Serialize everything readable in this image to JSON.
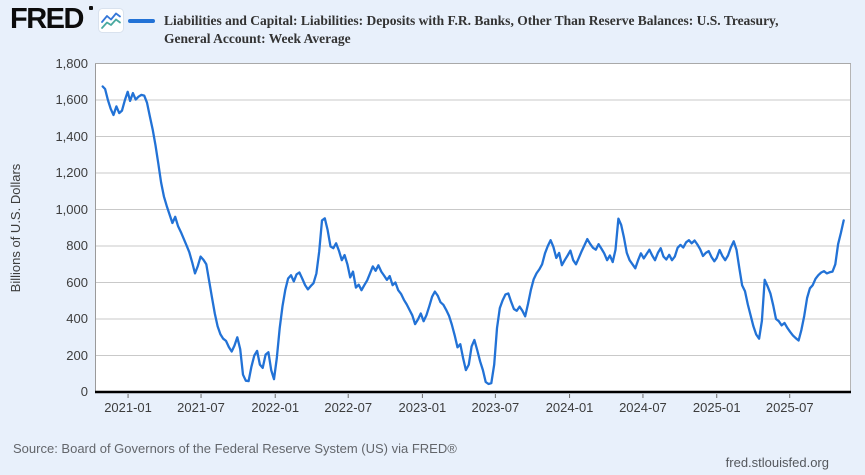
{
  "colors": {
    "background": "#e8f0fb",
    "plot_background": "#ffffff",
    "grid": "#c9c9c9",
    "axis": "#000000",
    "line": "#2272d6",
    "logo_line_top": "#3577d8",
    "logo_line_bottom": "#4aa9a0"
  },
  "header": {
    "logo_text": "FRED",
    "series_title_line1": "Liabilities and Capital: Liabilities: Deposits with F.R. Banks, Other Than Reserve Balances: U.S. Treasury,",
    "series_title_line2": "General Account: Week Average"
  },
  "footer": {
    "source": "Source: Board of Governors of the Federal Reserve System (US) via FRED®",
    "site": "fred.stlouisfed.org"
  },
  "chart_data": {
    "type": "line",
    "title": "Liabilities and Capital: Liabilities: Deposits with F.R. Banks, Other Than Reserve Balances: U.S. Treasury, General Account: Week Average",
    "xlabel": "",
    "ylabel": "Billions of U.S. Dollars",
    "ylim": [
      0,
      1800
    ],
    "y_ticks": [
      0,
      200,
      400,
      600,
      800,
      1000,
      1200,
      1400,
      1600,
      1800
    ],
    "x_ticks": [
      {
        "label": "2021-01",
        "date": "2021-01-01"
      },
      {
        "label": "2021-07",
        "date": "2021-07-01"
      },
      {
        "label": "2022-01",
        "date": "2022-01-01"
      },
      {
        "label": "2022-07",
        "date": "2022-07-01"
      },
      {
        "label": "2023-01",
        "date": "2023-01-01"
      },
      {
        "label": "2023-07",
        "date": "2023-07-01"
      },
      {
        "label": "2024-01",
        "date": "2024-01-01"
      },
      {
        "label": "2024-07",
        "date": "2024-07-01"
      },
      {
        "label": "2025-01",
        "date": "2025-01-01"
      },
      {
        "label": "2025-07",
        "date": "2025-07-01"
      }
    ],
    "xlim_dates": [
      "2020-10-10",
      "2025-11-30"
    ],
    "grid": "horizontal",
    "legend_position": "top",
    "series": [
      {
        "name": "Liabilities and Capital: Liabilities: Deposits with F.R. Banks, Other Than Reserve Balances: U.S. Treasury, General Account: Week Average",
        "units": "Billions of U.S. Dollars",
        "points": [
          [
            "2020-10-29",
            1674
          ],
          [
            "2020-11-04",
            1660
          ],
          [
            "2020-11-11",
            1600
          ],
          [
            "2020-11-18",
            1552
          ],
          [
            "2020-11-25",
            1518
          ],
          [
            "2020-12-02",
            1565
          ],
          [
            "2020-12-09",
            1528
          ],
          [
            "2020-12-16",
            1542
          ],
          [
            "2020-12-23",
            1598
          ],
          [
            "2020-12-30",
            1645
          ],
          [
            "2021-01-06",
            1595
          ],
          [
            "2021-01-13",
            1638
          ],
          [
            "2021-01-20",
            1602
          ],
          [
            "2021-01-27",
            1618
          ],
          [
            "2021-02-03",
            1628
          ],
          [
            "2021-02-10",
            1624
          ],
          [
            "2021-02-17",
            1585
          ],
          [
            "2021-02-24",
            1512
          ],
          [
            "2021-03-03",
            1438
          ],
          [
            "2021-03-10",
            1352
          ],
          [
            "2021-03-17",
            1252
          ],
          [
            "2021-03-24",
            1148
          ],
          [
            "2021-03-31",
            1072
          ],
          [
            "2021-04-07",
            1018
          ],
          [
            "2021-04-14",
            972
          ],
          [
            "2021-04-21",
            926
          ],
          [
            "2021-04-28",
            960
          ],
          [
            "2021-05-05",
            908
          ],
          [
            "2021-05-12",
            876
          ],
          [
            "2021-05-19",
            840
          ],
          [
            "2021-05-26",
            804
          ],
          [
            "2021-06-02",
            766
          ],
          [
            "2021-06-09",
            710
          ],
          [
            "2021-06-16",
            650
          ],
          [
            "2021-06-23",
            690
          ],
          [
            "2021-06-30",
            742
          ],
          [
            "2021-07-07",
            724
          ],
          [
            "2021-07-14",
            700
          ],
          [
            "2021-07-21",
            610
          ],
          [
            "2021-07-28",
            520
          ],
          [
            "2021-08-04",
            430
          ],
          [
            "2021-08-11",
            360
          ],
          [
            "2021-08-18",
            316
          ],
          [
            "2021-08-25",
            292
          ],
          [
            "2021-09-01",
            280
          ],
          [
            "2021-09-08",
            246
          ],
          [
            "2021-09-15",
            222
          ],
          [
            "2021-09-22",
            255
          ],
          [
            "2021-09-29",
            300
          ],
          [
            "2021-10-06",
            235
          ],
          [
            "2021-10-13",
            95
          ],
          [
            "2021-10-20",
            62
          ],
          [
            "2021-10-27",
            60
          ],
          [
            "2021-11-03",
            138
          ],
          [
            "2021-11-10",
            200
          ],
          [
            "2021-11-17",
            225
          ],
          [
            "2021-11-24",
            150
          ],
          [
            "2021-12-01",
            132
          ],
          [
            "2021-12-08",
            205
          ],
          [
            "2021-12-15",
            218
          ],
          [
            "2021-12-22",
            120
          ],
          [
            "2021-12-29",
            70
          ],
          [
            "2022-01-05",
            185
          ],
          [
            "2022-01-12",
            350
          ],
          [
            "2022-01-19",
            470
          ],
          [
            "2022-01-26",
            560
          ],
          [
            "2022-02-02",
            622
          ],
          [
            "2022-02-09",
            640
          ],
          [
            "2022-02-16",
            606
          ],
          [
            "2022-02-23",
            645
          ],
          [
            "2022-03-02",
            655
          ],
          [
            "2022-03-09",
            622
          ],
          [
            "2022-03-16",
            586
          ],
          [
            "2022-03-23",
            562
          ],
          [
            "2022-03-30",
            580
          ],
          [
            "2022-04-06",
            596
          ],
          [
            "2022-04-13",
            650
          ],
          [
            "2022-04-20",
            770
          ],
          [
            "2022-04-27",
            940
          ],
          [
            "2022-05-04",
            952
          ],
          [
            "2022-05-11",
            888
          ],
          [
            "2022-05-18",
            798
          ],
          [
            "2022-05-25",
            788
          ],
          [
            "2022-06-01",
            815
          ],
          [
            "2022-06-08",
            775
          ],
          [
            "2022-06-15",
            722
          ],
          [
            "2022-06-22",
            750
          ],
          [
            "2022-06-29",
            700
          ],
          [
            "2022-07-06",
            628
          ],
          [
            "2022-07-13",
            660
          ],
          [
            "2022-07-20",
            572
          ],
          [
            "2022-07-27",
            588
          ],
          [
            "2022-08-03",
            558
          ],
          [
            "2022-08-10",
            585
          ],
          [
            "2022-08-17",
            612
          ],
          [
            "2022-08-24",
            650
          ],
          [
            "2022-08-31",
            688
          ],
          [
            "2022-09-07",
            664
          ],
          [
            "2022-09-14",
            694
          ],
          [
            "2022-09-21",
            660
          ],
          [
            "2022-09-28",
            638
          ],
          [
            "2022-10-05",
            614
          ],
          [
            "2022-10-12",
            635
          ],
          [
            "2022-10-19",
            585
          ],
          [
            "2022-10-26",
            600
          ],
          [
            "2022-11-02",
            558
          ],
          [
            "2022-11-09",
            538
          ],
          [
            "2022-11-16",
            505
          ],
          [
            "2022-11-23",
            480
          ],
          [
            "2022-11-30",
            450
          ],
          [
            "2022-12-07",
            420
          ],
          [
            "2022-12-14",
            372
          ],
          [
            "2022-12-21",
            398
          ],
          [
            "2022-12-28",
            430
          ],
          [
            "2023-01-04",
            388
          ],
          [
            "2023-01-11",
            420
          ],
          [
            "2023-01-18",
            470
          ],
          [
            "2023-01-25",
            522
          ],
          [
            "2023-02-01",
            550
          ],
          [
            "2023-02-08",
            528
          ],
          [
            "2023-02-15",
            492
          ],
          [
            "2023-02-22",
            478
          ],
          [
            "2023-03-01",
            450
          ],
          [
            "2023-03-08",
            418
          ],
          [
            "2023-03-15",
            370
          ],
          [
            "2023-03-22",
            310
          ],
          [
            "2023-03-29",
            245
          ],
          [
            "2023-04-05",
            262
          ],
          [
            "2023-04-12",
            186
          ],
          [
            "2023-04-19",
            120
          ],
          [
            "2023-04-26",
            150
          ],
          [
            "2023-05-03",
            250
          ],
          [
            "2023-05-10",
            285
          ],
          [
            "2023-05-17",
            230
          ],
          [
            "2023-05-24",
            168
          ],
          [
            "2023-05-31",
            120
          ],
          [
            "2023-06-07",
            55
          ],
          [
            "2023-06-14",
            44
          ],
          [
            "2023-06-21",
            48
          ],
          [
            "2023-06-28",
            150
          ],
          [
            "2023-07-05",
            350
          ],
          [
            "2023-07-12",
            460
          ],
          [
            "2023-07-19",
            502
          ],
          [
            "2023-07-26",
            535
          ],
          [
            "2023-08-02",
            540
          ],
          [
            "2023-08-09",
            495
          ],
          [
            "2023-08-16",
            455
          ],
          [
            "2023-08-23",
            445
          ],
          [
            "2023-08-30",
            468
          ],
          [
            "2023-09-06",
            445
          ],
          [
            "2023-09-13",
            415
          ],
          [
            "2023-09-20",
            482
          ],
          [
            "2023-09-27",
            560
          ],
          [
            "2023-10-04",
            618
          ],
          [
            "2023-10-11",
            650
          ],
          [
            "2023-10-18",
            672
          ],
          [
            "2023-10-25",
            700
          ],
          [
            "2023-11-01",
            760
          ],
          [
            "2023-11-08",
            800
          ],
          [
            "2023-11-15",
            832
          ],
          [
            "2023-11-22",
            795
          ],
          [
            "2023-11-29",
            735
          ],
          [
            "2023-12-06",
            762
          ],
          [
            "2023-12-13",
            695
          ],
          [
            "2023-12-20",
            722
          ],
          [
            "2023-12-27",
            748
          ],
          [
            "2024-01-03",
            775
          ],
          [
            "2024-01-10",
            722
          ],
          [
            "2024-01-17",
            700
          ],
          [
            "2024-01-24",
            735
          ],
          [
            "2024-01-31",
            772
          ],
          [
            "2024-02-07",
            805
          ],
          [
            "2024-02-14",
            838
          ],
          [
            "2024-02-21",
            812
          ],
          [
            "2024-02-28",
            790
          ],
          [
            "2024-03-06",
            780
          ],
          [
            "2024-03-13",
            810
          ],
          [
            "2024-03-20",
            786
          ],
          [
            "2024-03-27",
            760
          ],
          [
            "2024-04-03",
            722
          ],
          [
            "2024-04-10",
            748
          ],
          [
            "2024-04-17",
            712
          ],
          [
            "2024-04-24",
            780
          ],
          [
            "2024-05-01",
            950
          ],
          [
            "2024-05-08",
            915
          ],
          [
            "2024-05-15",
            845
          ],
          [
            "2024-05-22",
            762
          ],
          [
            "2024-05-29",
            722
          ],
          [
            "2024-06-05",
            700
          ],
          [
            "2024-06-12",
            678
          ],
          [
            "2024-06-19",
            722
          ],
          [
            "2024-06-26",
            760
          ],
          [
            "2024-07-03",
            732
          ],
          [
            "2024-07-10",
            756
          ],
          [
            "2024-07-17",
            780
          ],
          [
            "2024-07-24",
            748
          ],
          [
            "2024-07-31",
            722
          ],
          [
            "2024-08-07",
            762
          ],
          [
            "2024-08-14",
            788
          ],
          [
            "2024-08-21",
            742
          ],
          [
            "2024-08-28",
            726
          ],
          [
            "2024-09-04",
            752
          ],
          [
            "2024-09-11",
            722
          ],
          [
            "2024-09-18",
            742
          ],
          [
            "2024-09-25",
            790
          ],
          [
            "2024-10-02",
            806
          ],
          [
            "2024-10-09",
            792
          ],
          [
            "2024-10-16",
            820
          ],
          [
            "2024-10-23",
            832
          ],
          [
            "2024-10-30",
            815
          ],
          [
            "2024-11-06",
            830
          ],
          [
            "2024-11-13",
            808
          ],
          [
            "2024-11-20",
            782
          ],
          [
            "2024-11-27",
            745
          ],
          [
            "2024-12-04",
            762
          ],
          [
            "2024-12-11",
            772
          ],
          [
            "2024-12-18",
            740
          ],
          [
            "2024-12-25",
            716
          ],
          [
            "2025-01-01",
            735
          ],
          [
            "2025-01-08",
            778
          ],
          [
            "2025-01-15",
            745
          ],
          [
            "2025-01-22",
            722
          ],
          [
            "2025-01-29",
            748
          ],
          [
            "2025-02-05",
            792
          ],
          [
            "2025-02-12",
            826
          ],
          [
            "2025-02-19",
            780
          ],
          [
            "2025-02-26",
            680
          ],
          [
            "2025-03-05",
            585
          ],
          [
            "2025-03-12",
            552
          ],
          [
            "2025-03-19",
            480
          ],
          [
            "2025-03-26",
            420
          ],
          [
            "2025-04-02",
            360
          ],
          [
            "2025-04-09",
            315
          ],
          [
            "2025-04-16",
            292
          ],
          [
            "2025-04-23",
            390
          ],
          [
            "2025-04-30",
            615
          ],
          [
            "2025-05-07",
            580
          ],
          [
            "2025-05-14",
            540
          ],
          [
            "2025-05-21",
            475
          ],
          [
            "2025-05-28",
            400
          ],
          [
            "2025-06-04",
            388
          ],
          [
            "2025-06-11",
            365
          ],
          [
            "2025-06-18",
            378
          ],
          [
            "2025-06-25",
            352
          ],
          [
            "2025-07-02",
            330
          ],
          [
            "2025-07-09",
            310
          ],
          [
            "2025-07-16",
            295
          ],
          [
            "2025-07-23",
            282
          ],
          [
            "2025-07-30",
            340
          ],
          [
            "2025-08-06",
            416
          ],
          [
            "2025-08-13",
            515
          ],
          [
            "2025-08-20",
            568
          ],
          [
            "2025-08-27",
            585
          ],
          [
            "2025-09-03",
            620
          ],
          [
            "2025-09-10",
            640
          ],
          [
            "2025-09-17",
            655
          ],
          [
            "2025-09-24",
            662
          ],
          [
            "2025-10-01",
            650
          ],
          [
            "2025-10-08",
            656
          ],
          [
            "2025-10-15",
            660
          ],
          [
            "2025-10-22",
            700
          ],
          [
            "2025-10-29",
            810
          ],
          [
            "2025-11-05",
            872
          ],
          [
            "2025-11-12",
            940
          ]
        ]
      }
    ]
  }
}
